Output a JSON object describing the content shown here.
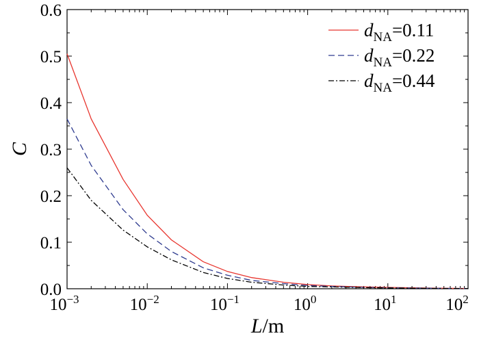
{
  "chart_data": {
    "type": "line",
    "x_scale": "log",
    "x": [
      0.001,
      0.002,
      0.005,
      0.01,
      0.02,
      0.05,
      0.1,
      0.2,
      0.5,
      1,
      2,
      5,
      10,
      20,
      50,
      100
    ],
    "series": [
      {
        "name_base": "d",
        "name_sub": "NA",
        "name_value": "=0.11",
        "color": "#e8352e",
        "dash": "solid",
        "values": [
          0.505,
          0.365,
          0.235,
          0.158,
          0.105,
          0.058,
          0.037,
          0.024,
          0.014,
          0.009,
          0.006,
          0.004,
          0.003,
          0.002,
          0.001,
          0.0006
        ]
      },
      {
        "name_base": "d",
        "name_sub": "NA",
        "name_value": "=0.22",
        "color": "#2e3b8f",
        "dash": "dashed",
        "values": [
          0.365,
          0.265,
          0.17,
          0.118,
          0.08,
          0.045,
          0.029,
          0.018,
          0.011,
          0.007,
          0.005,
          0.003,
          0.002,
          0.0015,
          0.0008,
          0.0005
        ]
      },
      {
        "name_base": "d",
        "name_sub": "NA",
        "name_value": "=0.44",
        "color": "#000000",
        "dash": "dashdot",
        "values": [
          0.26,
          0.19,
          0.126,
          0.09,
          0.062,
          0.035,
          0.022,
          0.014,
          0.008,
          0.005,
          0.004,
          0.0025,
          0.0017,
          0.0012,
          0.0006,
          0.0004
        ]
      }
    ],
    "xlabel_italic": "L",
    "xlabel_rest": "/m",
    "ylabel": "C",
    "xlim": [
      0.001,
      100
    ],
    "ylim": [
      0,
      0.6
    ],
    "y_ticks": [
      "0.0",
      "0.1",
      "0.2",
      "0.3",
      "0.4",
      "0.5",
      "0.6"
    ],
    "x_ticks": [
      {
        "base": "10",
        "exp": "−3"
      },
      {
        "base": "10",
        "exp": "−2"
      },
      {
        "base": "10",
        "exp": "−1"
      },
      {
        "base": "10",
        "exp": "0"
      },
      {
        "base": "10",
        "exp": "1"
      },
      {
        "base": "10",
        "exp": "2"
      }
    ],
    "legend_position": "top-right",
    "grid": false
  }
}
